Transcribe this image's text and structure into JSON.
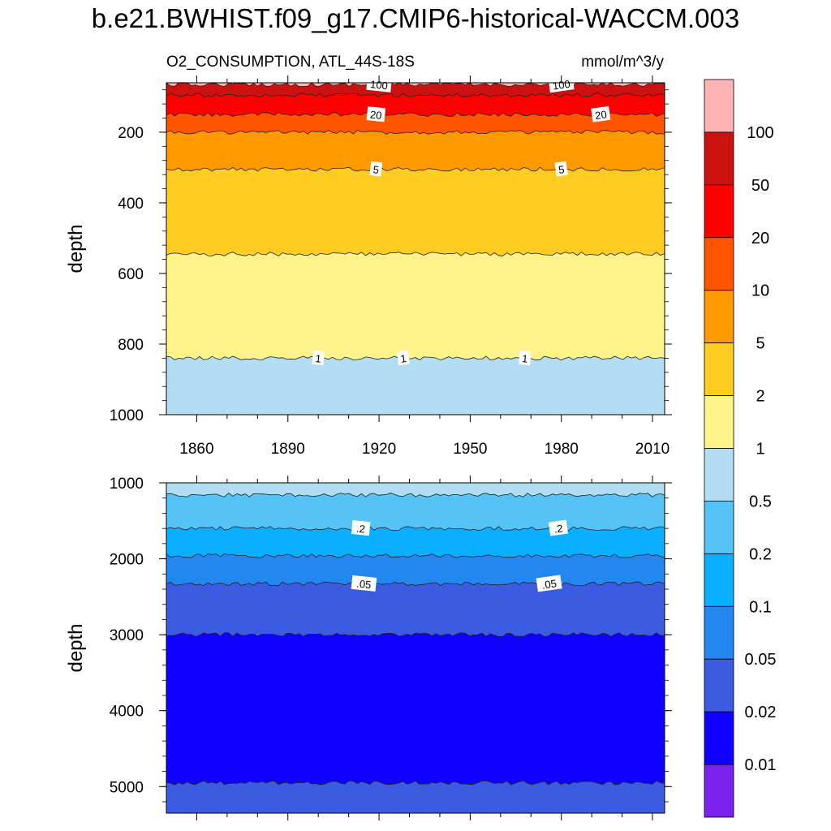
{
  "title": "b.e21.BWHIST.f09_g17.CMIP6-historical-WACCM.003",
  "left_subtitle": "O2_CONSUMPTION, ATL_44S-18S",
  "right_subtitle": "mmol/m^3/y",
  "chart_data": [
    {
      "type": "contour",
      "panel": "upper",
      "x_range": [
        1850,
        2014
      ],
      "xlabel": "",
      "ylabel": "depth",
      "ylim": [
        60,
        1000
      ],
      "y_inverted": true,
      "x_ticks": [
        "1860",
        "1890",
        "1920",
        "1950",
        "1980",
        "2010"
      ],
      "y_ticks": [
        "200",
        "400",
        "600",
        "800",
        "1000"
      ],
      "bands": [
        {
          "range": "> 100",
          "color": "#FFB3B3",
          "top": 60,
          "bottom": 65
        },
        {
          "range": "50-100",
          "color": "#CC1111",
          "top": 65,
          "bottom": 95
        },
        {
          "range": "20-50",
          "color": "#FF0000",
          "top": 95,
          "bottom": 150
        },
        {
          "range": "10-20",
          "color": "#FF5500",
          "top": 150,
          "bottom": 200
        },
        {
          "range": "5-10",
          "color": "#FF9900",
          "top": 200,
          "bottom": 305
        },
        {
          "range": "2-5",
          "color": "#FFCC22",
          "top": 305,
          "bottom": 545
        },
        {
          "range": "1-2",
          "color": "#FFF389",
          "top": 545,
          "bottom": 840
        },
        {
          "range": "0.5-1",
          "color": "#B3DDF2",
          "top": 840,
          "bottom": 1000
        }
      ],
      "contour_labels": [
        {
          "text": "100",
          "x": 1920,
          "y": 65
        },
        {
          "text": "100",
          "x": 1980,
          "y": 65
        },
        {
          "text": "20",
          "x": 1919,
          "y": 150
        },
        {
          "text": "20",
          "x": 1993,
          "y": 150
        },
        {
          "text": "5",
          "x": 1919,
          "y": 305
        },
        {
          "text": "5",
          "x": 1980,
          "y": 305
        },
        {
          "text": "1",
          "x": 1900,
          "y": 840
        },
        {
          "text": "1",
          "x": 1928,
          "y": 840
        },
        {
          "text": "1",
          "x": 1968,
          "y": 840
        }
      ]
    },
    {
      "type": "contour",
      "panel": "lower",
      "x_range": [
        1850,
        2014
      ],
      "xlabel": "",
      "ylabel": "depth",
      "ylim": [
        1000,
        5350
      ],
      "y_inverted": true,
      "x_ticks": [],
      "y_ticks": [
        "1000",
        "2000",
        "3000",
        "4000",
        "5000"
      ],
      "bands": [
        {
          "range": "0.5-1",
          "color": "#B3DDF2",
          "top": 1000,
          "bottom": 1160
        },
        {
          "range": "0.2-0.5",
          "color": "#55C3F5",
          "top": 1160,
          "bottom": 1600
        },
        {
          "range": "0.1-0.2",
          "color": "#0AB0FF",
          "top": 1600,
          "bottom": 1960
        },
        {
          "range": "0.05-0.1",
          "color": "#2288F0",
          "top": 1960,
          "bottom": 2330
        },
        {
          "range": "0.02-0.05",
          "color": "#3B5BE0",
          "top": 2330,
          "bottom": 3000
        },
        {
          "range": "0.01-0.02",
          "color": "#1000FF",
          "top": 3000,
          "bottom": 4950
        },
        {
          "range": "0.02-0.05",
          "color": "#3B5BE0",
          "top": 4950,
          "bottom": 5350
        }
      ],
      "contour_labels": [
        {
          "text": ".2",
          "x": 1914,
          "y": 1600
        },
        {
          "text": ".2",
          "x": 1979,
          "y": 1600
        },
        {
          "text": ".05",
          "x": 1915,
          "y": 2330
        },
        {
          "text": ".05",
          "x": 1976,
          "y": 2330
        }
      ]
    }
  ],
  "colorbar": {
    "colors": [
      "#FFB3B3",
      "#CC1111",
      "#FF0000",
      "#FF5500",
      "#FF9900",
      "#FFCC22",
      "#FFF389",
      "#B3DDF2",
      "#55C3F5",
      "#0AB0FF",
      "#2288F0",
      "#3B5BE0",
      "#1000FF",
      "#7B22EE"
    ],
    "labels": [
      "100",
      "50",
      "20",
      "10",
      "5",
      "2",
      "1",
      "0.5",
      "0.2",
      "0.1",
      "0.05",
      "0.02",
      "0.01"
    ]
  }
}
